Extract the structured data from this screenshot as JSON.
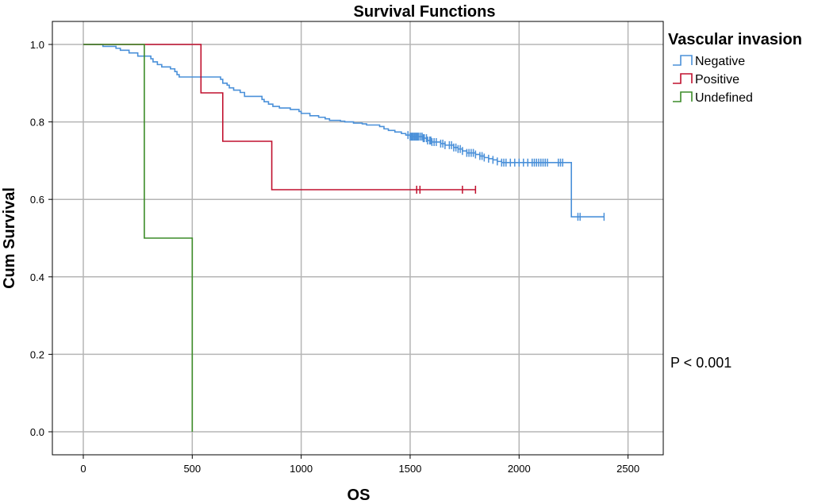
{
  "chart_data": {
    "type": "line",
    "title": "Survival Functions",
    "xlabel": "OS",
    "ylabel": "Cum Survival",
    "xlim": [
      0,
      2600
    ],
    "ylim": [
      -0.05,
      1.05
    ],
    "xticks": [
      0,
      500,
      1000,
      1500,
      2000,
      2500
    ],
    "yticks": [
      0.0,
      0.2,
      0.4,
      0.6,
      0.8,
      1.0
    ],
    "ytick_labels": [
      "0.0",
      "0.2",
      "0.4",
      "0.6",
      "0.8",
      "1.0"
    ],
    "grid": true,
    "legend_title": "Vascular invasion",
    "legend_position": "top-right",
    "annotation": "P < 0.001",
    "series": [
      {
        "name": "Negative",
        "color": "#4a90d9",
        "steps": [
          [
            0,
            1.0
          ],
          [
            90,
            0.995
          ],
          [
            150,
            0.99
          ],
          [
            170,
            0.985
          ],
          [
            210,
            0.978
          ],
          [
            250,
            0.97
          ],
          [
            310,
            0.963
          ],
          [
            320,
            0.955
          ],
          [
            340,
            0.948
          ],
          [
            360,
            0.942
          ],
          [
            400,
            0.937
          ],
          [
            420,
            0.93
          ],
          [
            430,
            0.922
          ],
          [
            440,
            0.916
          ],
          [
            630,
            0.91
          ],
          [
            640,
            0.9
          ],
          [
            660,
            0.895
          ],
          [
            670,
            0.888
          ],
          [
            690,
            0.882
          ],
          [
            720,
            0.876
          ],
          [
            740,
            0.866
          ],
          [
            760,
            0.866
          ],
          [
            820,
            0.858
          ],
          [
            830,
            0.852
          ],
          [
            850,
            0.846
          ],
          [
            870,
            0.84
          ],
          [
            900,
            0.836
          ],
          [
            950,
            0.832
          ],
          [
            990,
            0.827
          ],
          [
            1000,
            0.822
          ],
          [
            1040,
            0.816
          ],
          [
            1080,
            0.812
          ],
          [
            1110,
            0.808
          ],
          [
            1130,
            0.804
          ],
          [
            1180,
            0.802
          ],
          [
            1200,
            0.8
          ],
          [
            1240,
            0.797
          ],
          [
            1280,
            0.795
          ],
          [
            1300,
            0.792
          ],
          [
            1360,
            0.788
          ],
          [
            1380,
            0.782
          ],
          [
            1400,
            0.778
          ],
          [
            1430,
            0.774
          ],
          [
            1460,
            0.77
          ],
          [
            1480,
            0.766
          ],
          [
            1500,
            0.762
          ],
          [
            1560,
            0.758
          ],
          [
            1580,
            0.752
          ],
          [
            1600,
            0.748
          ],
          [
            1640,
            0.744
          ],
          [
            1660,
            0.74
          ],
          [
            1700,
            0.734
          ],
          [
            1720,
            0.73
          ],
          [
            1740,
            0.725
          ],
          [
            1760,
            0.72
          ],
          [
            1800,
            0.716
          ],
          [
            1820,
            0.712
          ],
          [
            1840,
            0.708
          ],
          [
            1860,
            0.705
          ],
          [
            1880,
            0.702
          ],
          [
            1900,
            0.698
          ],
          [
            1920,
            0.695
          ],
          [
            2240,
            0.555
          ],
          [
            2390,
            0.555
          ]
        ],
        "censored": [
          1490,
          1500,
          1505,
          1510,
          1515,
          1520,
          1525,
          1530,
          1535,
          1540,
          1548,
          1555,
          1560,
          1565,
          1575,
          1580,
          1590,
          1595,
          1600,
          1610,
          1620,
          1640,
          1650,
          1660,
          1680,
          1690,
          1700,
          1710,
          1720,
          1730,
          1740,
          1760,
          1770,
          1780,
          1790,
          1800,
          1820,
          1830,
          1840,
          1860,
          1880,
          1900,
          1920,
          1930,
          1940,
          1960,
          1980,
          2000,
          2020,
          2040,
          2060,
          2070,
          2080,
          2090,
          2100,
          2110,
          2120,
          2130,
          2180,
          2190,
          2200,
          2270,
          2280,
          2390
        ]
      },
      {
        "name": "Positive",
        "color": "#c0102e",
        "steps": [
          [
            0,
            1.0
          ],
          [
            540,
            0.875
          ],
          [
            640,
            0.75
          ],
          [
            865,
            0.625
          ],
          [
            1800,
            0.625
          ]
        ],
        "censored": [
          1530,
          1545,
          1740,
          1800
        ]
      },
      {
        "name": "Undefined",
        "color": "#3c8c28",
        "steps": [
          [
            0,
            1.0
          ],
          [
            280,
            0.5
          ],
          [
            500,
            0.0
          ]
        ],
        "censored": []
      }
    ]
  }
}
